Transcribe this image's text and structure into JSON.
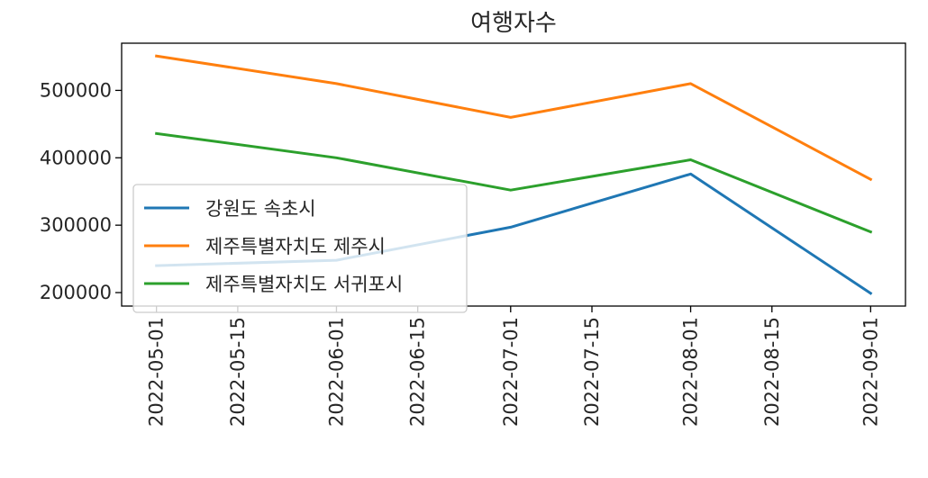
{
  "chart_data": {
    "type": "line",
    "title": "여행자수",
    "xlabel": "",
    "ylabel": "",
    "x": [
      "2022-05-01",
      "2022-06-01",
      "2022-07-01",
      "2022-08-01",
      "2022-09-01"
    ],
    "x_ticks": [
      "2022-05-01",
      "2022-05-15",
      "2022-06-01",
      "2022-06-15",
      "2022-07-01",
      "2022-07-15",
      "2022-08-01",
      "2022-08-15",
      "2022-09-01"
    ],
    "y_ticks": [
      200000,
      300000,
      400000,
      500000
    ],
    "xlim": [
      "2022-04-25",
      "2022-09-07"
    ],
    "ylim": [
      180000,
      570000
    ],
    "grid": false,
    "legend_position": "lower-left",
    "series": [
      {
        "name": "강원도 속초시",
        "color": "#1f77b4",
        "values": [
          240000,
          248000,
          297000,
          376000,
          199000
        ]
      },
      {
        "name": "제주특별자치도 제주시",
        "color": "#ff7f0e",
        "values": [
          551000,
          510000,
          460000,
          510000,
          368000
        ]
      },
      {
        "name": "제주특별자치도 서귀포시",
        "color": "#2ca02c",
        "values": [
          436000,
          400000,
          352000,
          397000,
          290000
        ]
      }
    ]
  }
}
